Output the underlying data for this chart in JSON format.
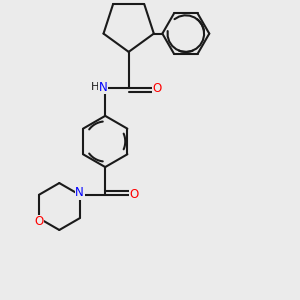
{
  "background_color": "#ebebeb",
  "line_color": "#1a1a1a",
  "bond_width": 1.5,
  "N_color": "#0000ff",
  "O_color": "#ff0000",
  "figsize": [
    3.0,
    3.0
  ],
  "dpi": 100,
  "xlim": [
    -2.5,
    3.5
  ],
  "ylim": [
    -3.8,
    3.2
  ]
}
